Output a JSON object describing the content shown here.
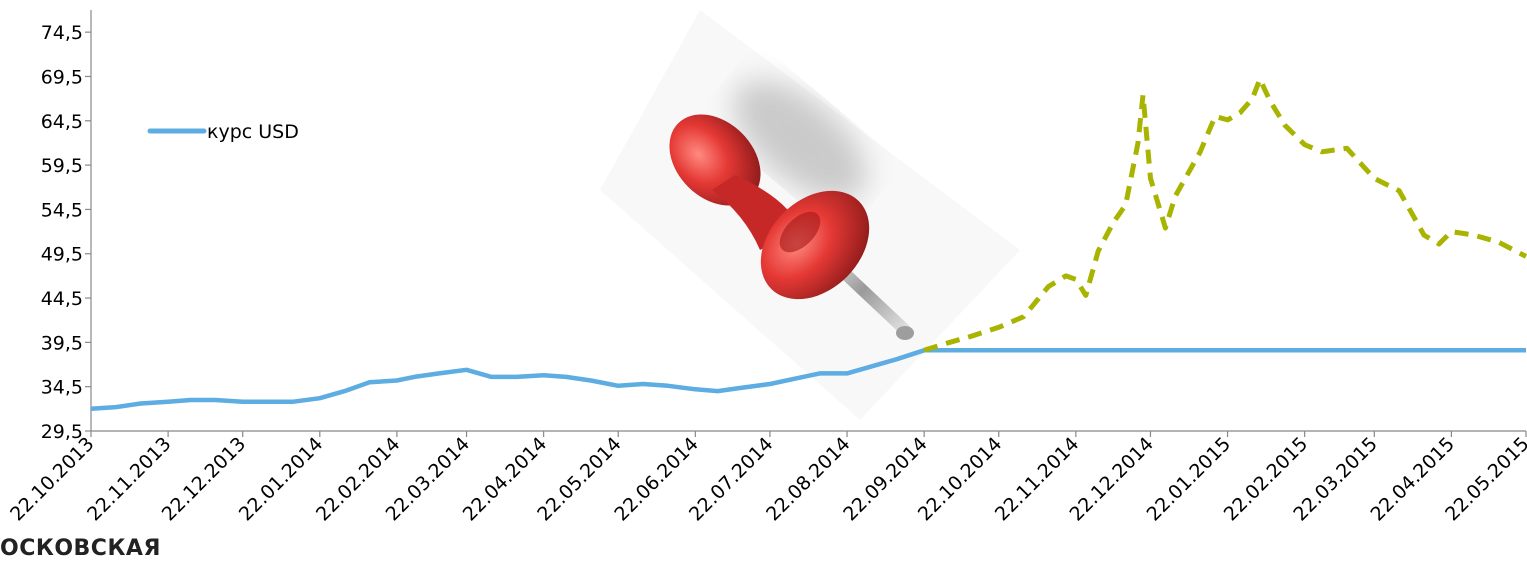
{
  "chart_data": {
    "type": "line",
    "title": "",
    "xlabel": "",
    "ylabel": "",
    "ylim": [
      29.5,
      77.0
    ],
    "yticks": [
      "29,5",
      "34,5",
      "39,5",
      "44,5",
      "49,5",
      "54,5",
      "59,5",
      "64,5",
      "69,5",
      "74,5"
    ],
    "xticks": [
      "22.10.2013",
      "22.11.2013",
      "22.12.2013",
      "22.01.2014",
      "22.02.2014",
      "22.03.2014",
      "22.04.2014",
      "22.05.2014",
      "22.06.2014",
      "22.07.2014",
      "22.08.2014",
      "22.09.2014",
      "22.10.2014",
      "22.11.2014",
      "22.12.2014",
      "22.01.2015",
      "22.02.2015",
      "22.03.2015",
      "22.04.2015",
      "22.05.2015"
    ],
    "legend": {
      "position": "top-left",
      "label": "курс USD"
    },
    "grid": false,
    "series": [
      {
        "name": "курс USD",
        "color": "#5DADE2",
        "style": "solid",
        "points": [
          [
            "22.10.2013",
            32.0
          ],
          [
            "01.11.2013",
            32.2
          ],
          [
            "11.11.2013",
            32.6
          ],
          [
            "22.11.2013",
            32.8
          ],
          [
            "01.12.2013",
            33.0
          ],
          [
            "11.12.2013",
            33.0
          ],
          [
            "22.12.2013",
            32.8
          ],
          [
            "01.01.2014",
            32.8
          ],
          [
            "11.01.2014",
            32.8
          ],
          [
            "22.01.2014",
            33.2
          ],
          [
            "01.02.2014",
            34.0
          ],
          [
            "11.02.2014",
            35.0
          ],
          [
            "22.02.2014",
            35.2
          ],
          [
            "01.03.2014",
            35.6
          ],
          [
            "11.03.2014",
            36.0
          ],
          [
            "22.03.2014",
            36.4
          ],
          [
            "01.04.2014",
            35.6
          ],
          [
            "11.04.2014",
            35.6
          ],
          [
            "22.04.2014",
            35.8
          ],
          [
            "01.05.2014",
            35.6
          ],
          [
            "11.05.2014",
            35.2
          ],
          [
            "22.05.2014",
            34.6
          ],
          [
            "01.06.2014",
            34.8
          ],
          [
            "11.06.2014",
            34.6
          ],
          [
            "22.06.2014",
            34.2
          ],
          [
            "01.07.2014",
            34.0
          ],
          [
            "11.07.2014",
            34.4
          ],
          [
            "22.07.2014",
            34.8
          ],
          [
            "01.08.2014",
            35.4
          ],
          [
            "11.08.2014",
            36.0
          ],
          [
            "22.08.2014",
            36.0
          ],
          [
            "01.09.2014",
            36.8
          ],
          [
            "11.09.2014",
            37.6
          ],
          [
            "22.09.2014",
            38.6
          ],
          [
            "22.10.2014",
            38.6
          ],
          [
            "22.11.2014",
            38.6
          ],
          [
            "22.12.2014",
            38.6
          ],
          [
            "22.01.2015",
            38.6
          ],
          [
            "22.02.2015",
            38.6
          ],
          [
            "22.03.2015",
            38.6
          ],
          [
            "22.04.2015",
            38.6
          ],
          [
            "22.05.2015",
            38.6
          ]
        ]
      },
      {
        "name": "",
        "color": "#A8B400",
        "style": "dashed",
        "points": [
          [
            "22.09.2014",
            38.6
          ],
          [
            "01.10.2014",
            39.4
          ],
          [
            "11.10.2014",
            40.2
          ],
          [
            "22.10.2014",
            41.2
          ],
          [
            "01.11.2014",
            42.4
          ],
          [
            "11.11.2014",
            45.8
          ],
          [
            "18.11.2014",
            47.0
          ],
          [
            "22.11.2014",
            46.6
          ],
          [
            "26.11.2014",
            44.8
          ],
          [
            "01.12.2014",
            49.8
          ],
          [
            "07.12.2014",
            53.0
          ],
          [
            "12.12.2014",
            55.0
          ],
          [
            "17.12.2014",
            62.0
          ],
          [
            "19.12.2014",
            67.4
          ],
          [
            "22.12.2014",
            58.0
          ],
          [
            "28.12.2014",
            52.4
          ],
          [
            "01.01.2015",
            56.0
          ],
          [
            "11.01.2015",
            61.0
          ],
          [
            "17.01.2015",
            65.0
          ],
          [
            "22.01.2015",
            64.6
          ],
          [
            "27.01.2015",
            65.4
          ],
          [
            "01.02.2015",
            67.0
          ],
          [
            "04.02.2015",
            69.2
          ],
          [
            "08.02.2015",
            66.8
          ],
          [
            "14.02.2015",
            64.0
          ],
          [
            "22.02.2015",
            61.8
          ],
          [
            "01.03.2015",
            61.0
          ],
          [
            "11.03.2015",
            61.4
          ],
          [
            "22.03.2015",
            58.0
          ],
          [
            "01.04.2015",
            56.6
          ],
          [
            "11.04.2015",
            51.6
          ],
          [
            "17.04.2015",
            50.6
          ],
          [
            "22.04.2015",
            52.0
          ],
          [
            "01.05.2015",
            51.6
          ],
          [
            "11.05.2015",
            50.8
          ],
          [
            "22.05.2015",
            49.2
          ]
        ]
      }
    ]
  },
  "footer": {
    "text": "ОСКОВСКАЯ"
  },
  "icons": {
    "pushpin": "pushpin-icon"
  }
}
